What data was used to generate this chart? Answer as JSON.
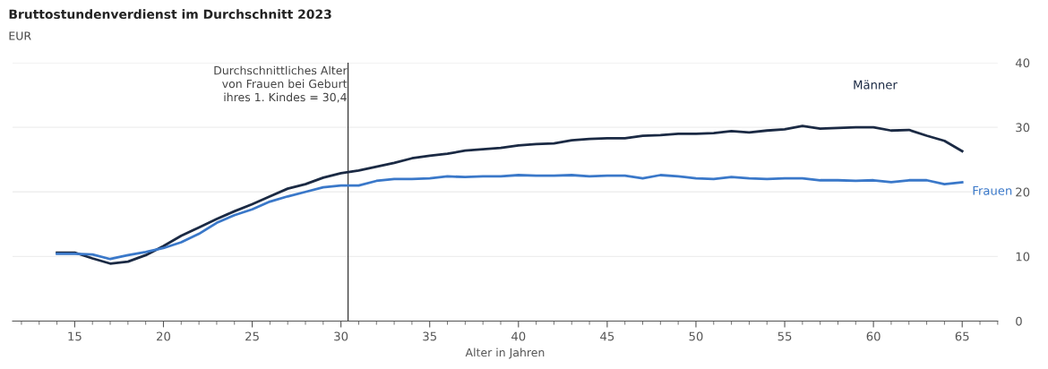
{
  "chart_data": {
    "type": "line",
    "title": "Bruttostundenverdienst im Durchschnitt 2023",
    "subtitle": "EUR",
    "xlabel": "Alter in Jahren",
    "x": [
      14,
      15,
      16,
      17,
      18,
      19,
      20,
      21,
      22,
      23,
      24,
      25,
      26,
      27,
      28,
      29,
      30,
      31,
      32,
      33,
      34,
      35,
      36,
      37,
      38,
      39,
      40,
      41,
      42,
      43,
      44,
      45,
      46,
      47,
      48,
      49,
      50,
      51,
      52,
      53,
      54,
      55,
      56,
      57,
      58,
      59,
      60,
      61,
      62,
      63,
      64,
      65
    ],
    "series": [
      {
        "name": "Männer",
        "color": "#1b2a44",
        "values": [
          10.6,
          10.6,
          9.7,
          8.9,
          9.2,
          10.2,
          11.6,
          13.2,
          14.5,
          15.8,
          17.0,
          18.1,
          19.3,
          20.5,
          21.2,
          22.2,
          22.9,
          23.3,
          23.9,
          24.5,
          25.2,
          25.6,
          25.9,
          26.4,
          26.6,
          26.8,
          27.2,
          27.4,
          27.5,
          28.0,
          28.2,
          28.3,
          28.3,
          28.7,
          28.8,
          29.0,
          29.0,
          29.1,
          29.4,
          29.2,
          29.5,
          29.7,
          30.2,
          29.8,
          29.9,
          30.0,
          30.0,
          29.5,
          29.6,
          28.7,
          27.9,
          26.3
        ]
      },
      {
        "name": "Frauen",
        "color": "#3a78c9",
        "values": [
          10.4,
          10.4,
          10.3,
          9.6,
          10.2,
          10.7,
          11.3,
          12.2,
          13.5,
          15.2,
          16.4,
          17.3,
          18.5,
          19.3,
          20.0,
          20.7,
          21.0,
          21.0,
          21.7,
          22.0,
          22.0,
          22.1,
          22.4,
          22.3,
          22.4,
          22.4,
          22.6,
          22.5,
          22.5,
          22.6,
          22.4,
          22.5,
          22.5,
          22.1,
          22.6,
          22.4,
          22.1,
          22.0,
          22.3,
          22.1,
          22.0,
          22.1,
          22.1,
          21.8,
          21.8,
          21.7,
          21.8,
          21.5,
          21.8,
          21.8,
          21.2,
          21.5
        ]
      }
    ],
    "xlim": [
      11.5,
      67
    ],
    "xticks": [
      15,
      20,
      25,
      30,
      35,
      40,
      45,
      50,
      55,
      60,
      65
    ],
    "ylim": [
      0,
      40
    ],
    "yticks": [
      0,
      10,
      20,
      30,
      40
    ],
    "grid": "y",
    "legend": false,
    "marker": "none",
    "line_style": "solid",
    "ref_lines": [
      {
        "axis": "x",
        "value": 30.4,
        "label": "Durchschnittliches Alter\nvon Frauen bei Geburt\nihres 1. Kindes = 30,4",
        "color": "#333333"
      }
    ]
  }
}
